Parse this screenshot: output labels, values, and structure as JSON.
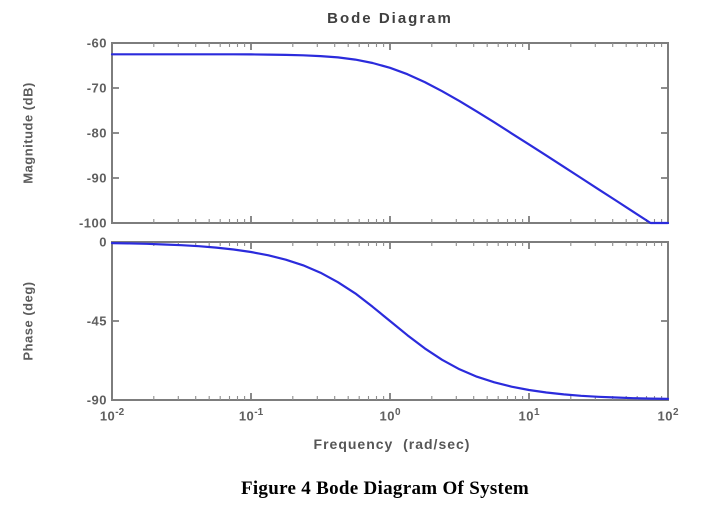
{
  "figure": {
    "title": "Bode Diagram",
    "caption": "Figure 4 Bode Diagram Of System"
  },
  "chart_data": {
    "type": "line",
    "title": "Bode Diagram",
    "xlabel": "Frequency  (rad/sec)",
    "x_scale": "log10",
    "x_range": [
      0.01,
      100
    ],
    "x_tick_base": "10",
    "x_tick_exponents": [
      "-2",
      "-1",
      "0",
      "1",
      "2"
    ],
    "x_tick_labels": [
      "10^-2",
      "10^-1",
      "10^0",
      "10^1",
      "10^2"
    ],
    "grid": false,
    "legend": "none",
    "line_color": "#2b2bdc",
    "axis_color": "#7d7d7d",
    "text_color": "#5f5f5f",
    "subplots": [
      {
        "name": "magnitude",
        "ylabel": "Magnitude (dB)",
        "ylim": [
          -100,
          -60
        ],
        "yticks": [
          -60,
          -70,
          -80,
          -90,
          -100
        ],
        "ytick_labels": [
          "-60",
          "-70",
          "-80",
          "-90",
          "-100"
        ]
      },
      {
        "name": "phase",
        "ylabel": "Phase (deg)",
        "ylim": [
          -90,
          0
        ],
        "yticks": [
          0,
          -45,
          -90
        ],
        "ytick_labels": [
          "0",
          "-45",
          "-90"
        ]
      }
    ],
    "series": {
      "log10_frequency": [
        -2,
        -1.875,
        -1.75,
        -1.625,
        -1.5,
        -1.375,
        -1.25,
        -1.125,
        -1,
        -0.875,
        -0.75,
        -0.625,
        -0.5,
        -0.375,
        -0.25,
        -0.125,
        0,
        0.125,
        0.25,
        0.375,
        0.5,
        0.625,
        0.75,
        0.875,
        1,
        1.125,
        1.25,
        1.375,
        1.5,
        1.625,
        1.75,
        1.875,
        2
      ],
      "magnitude_db": [
        -62.5,
        -62.5,
        -62.5,
        -62.5,
        -62.5,
        -62.51,
        -62.51,
        -62.52,
        -62.54,
        -62.58,
        -62.64,
        -62.74,
        -62.91,
        -63.21,
        -63.69,
        -64.44,
        -65.51,
        -66.94,
        -68.69,
        -70.71,
        -72.91,
        -75.24,
        -77.63,
        -80.08,
        -82.54,
        -85.03,
        -87.51,
        -90.01,
        -92.5,
        -95.0,
        -97.5,
        -100.0,
        -102.5
      ],
      "phase_deg": [
        -0.6,
        -0.8,
        -1.0,
        -1.4,
        -1.8,
        -2.4,
        -3.2,
        -4.3,
        -5.7,
        -7.6,
        -10.1,
        -13.3,
        -17.5,
        -22.9,
        -29.3,
        -36.9,
        -45.0,
        -53.1,
        -60.6,
        -67.1,
        -72.5,
        -76.7,
        -79.9,
        -82.4,
        -84.3,
        -85.7,
        -86.8,
        -87.6,
        -88.2,
        -88.6,
        -89.0,
        -89.2,
        -89.4
      ]
    }
  }
}
